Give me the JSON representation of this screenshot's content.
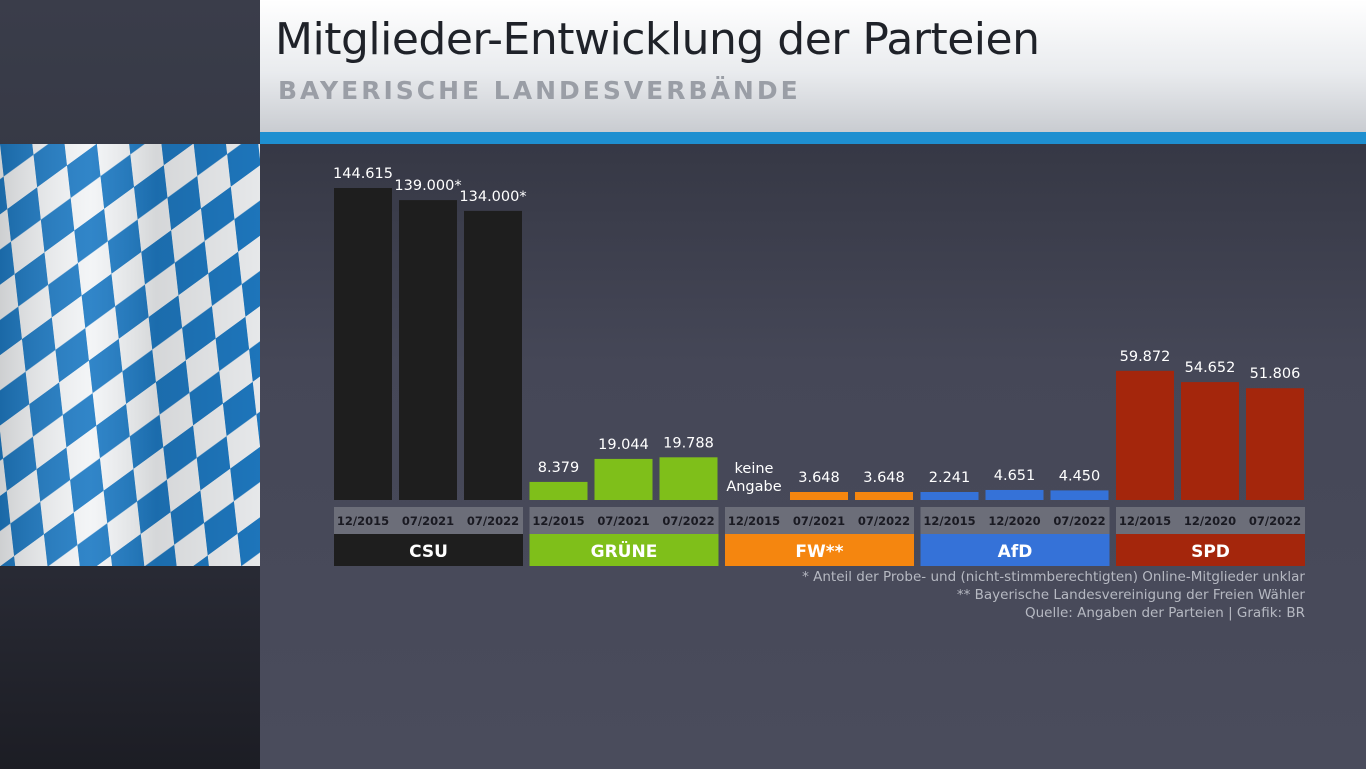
{
  "header": {
    "title": "Mitglieder-Entwicklung der Parteien",
    "subtitle": "BAYERISCHE LANDESVERBÄNDE"
  },
  "colors": {
    "accent": "#1e8fd0",
    "CSU": "#1e1e1e",
    "GRÜNE": "#7fbf1a",
    "FW": "#f5860f",
    "AfD": "#3572d8",
    "SPD": "#a4260c",
    "date_band": "#6c6e79"
  },
  "chart_data": {
    "type": "bar",
    "title": "Mitglieder-Entwicklung der Parteien",
    "subtitle": "BAYERISCHE LANDESVERBÄNDE",
    "ylim": [
      0,
      150000
    ],
    "grid": false,
    "groups": [
      {
        "party": "CSU",
        "color": "#1e1e1e",
        "bars": [
          {
            "date": "12/2015",
            "value": 144615,
            "label": "144.615"
          },
          {
            "date": "07/2021",
            "value": 139000,
            "label": "139.000*"
          },
          {
            "date": "07/2022",
            "value": 134000,
            "label": "134.000*"
          }
        ]
      },
      {
        "party": "GRÜNE",
        "color": "#7fbf1a",
        "bars": [
          {
            "date": "12/2015",
            "value": 8379,
            "label": "8.379"
          },
          {
            "date": "07/2021",
            "value": 19044,
            "label": "19.044"
          },
          {
            "date": "07/2022",
            "value": 19788,
            "label": "19.788"
          }
        ]
      },
      {
        "party": "FW**",
        "color": "#f5860f",
        "bars": [
          {
            "date": "12/2015",
            "value": null,
            "label": "keine\nAngabe"
          },
          {
            "date": "07/2021",
            "value": 3648,
            "label": "3.648"
          },
          {
            "date": "07/2022",
            "value": 3648,
            "label": "3.648"
          }
        ]
      },
      {
        "party": "AfD",
        "color": "#3572d8",
        "bars": [
          {
            "date": "12/2015",
            "value": 2241,
            "label": "2.241"
          },
          {
            "date": "12/2020",
            "value": 4651,
            "label": "4.651"
          },
          {
            "date": "07/2022",
            "value": 4450,
            "label": "4.450"
          }
        ]
      },
      {
        "party": "SPD",
        "color": "#a4260c",
        "bars": [
          {
            "date": "12/2015",
            "value": 59872,
            "label": "59.872"
          },
          {
            "date": "12/2020",
            "value": 54652,
            "label": "54.652"
          },
          {
            "date": "07/2022",
            "value": 51806,
            "label": "51.806"
          }
        ]
      }
    ],
    "notes": [
      "* Anteil der Probe- und (nicht-stimmberechtigten) Online-Mitglieder unklar",
      "** Bayerische Landesvereinigung der Freien Wähler",
      "Quelle: Angaben der Parteien | Grafik: BR"
    ]
  }
}
